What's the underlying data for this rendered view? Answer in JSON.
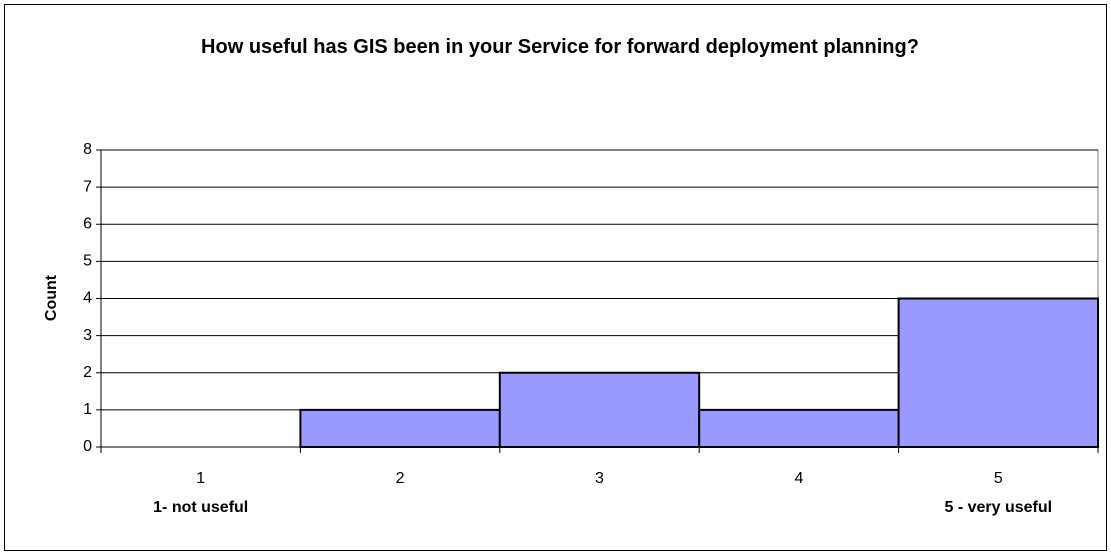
{
  "chart_data": {
    "type": "bar",
    "title": "How useful has GIS been in your Service for forward deployment planning?",
    "ylabel": "Count",
    "categories": [
      "1",
      "2",
      "3",
      "4",
      "5"
    ],
    "values": [
      0,
      1,
      2,
      1,
      4
    ],
    "color": "#9999ff",
    "ylim": [
      0,
      8
    ],
    "yticks": [
      0,
      1,
      2,
      3,
      4,
      5,
      6,
      7,
      8
    ],
    "grid": true,
    "annotations": [
      "1- not useful",
      "5 - very useful"
    ]
  }
}
